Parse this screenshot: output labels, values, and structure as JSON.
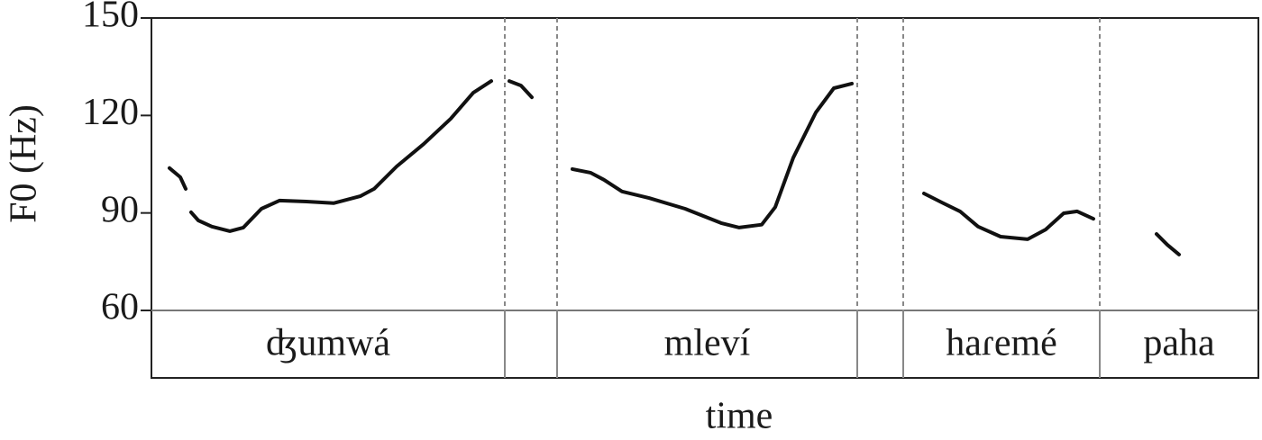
{
  "chart_data": {
    "type": "line",
    "ylabel": "F0 (Hz)",
    "xlabel": "time",
    "ylim": [
      60,
      150
    ],
    "yticks": [
      60,
      90,
      120,
      150
    ],
    "xlim": [
      0,
      1228
    ],
    "series": [
      {
        "name": "F0",
        "color": "#111111",
        "x": [
          20,
          32,
          38,
          null,
          44,
          52,
          67,
          87,
          102,
          122,
          142,
          172,
          202,
          232,
          247,
          272,
          302,
          332,
          357,
          377,
          null,
          397,
          410,
          422,
          null,
          467,
          487,
          502,
          522,
          552,
          592,
          632,
          652,
          677,
          692,
          712,
          737,
          757,
          777,
          null,
          857,
          877,
          897,
          917,
          942,
          972,
          992,
          1012,
          1027,
          1045,
          null,
          1115,
          1127,
          1140
        ],
        "values": [
          103.8,
          101,
          97.4,
          null,
          90.2,
          87.7,
          85.8,
          84.4,
          85.5,
          91.3,
          93.8,
          93.5,
          93,
          95.2,
          97.4,
          104.3,
          111.2,
          119,
          127,
          130.6,
          null,
          130.6,
          129.2,
          125.6,
          null,
          103.5,
          102.4,
          100.2,
          96.6,
          94.6,
          91.3,
          86.9,
          85.5,
          86.4,
          91.8,
          107,
          120.9,
          128.4,
          129.8,
          null,
          96,
          93.2,
          90.5,
          85.8,
          82.7,
          81.9,
          84.9,
          89.9,
          90.5,
          88.2,
          null,
          83.5,
          80.2,
          77.2
        ]
      }
    ],
    "boundaries": [
      392,
      450,
      783,
      834,
      1052
    ],
    "segment_labels": [
      "ʤumwá",
      null,
      "mleví",
      null,
      "haɾemé",
      "paha"
    ]
  }
}
